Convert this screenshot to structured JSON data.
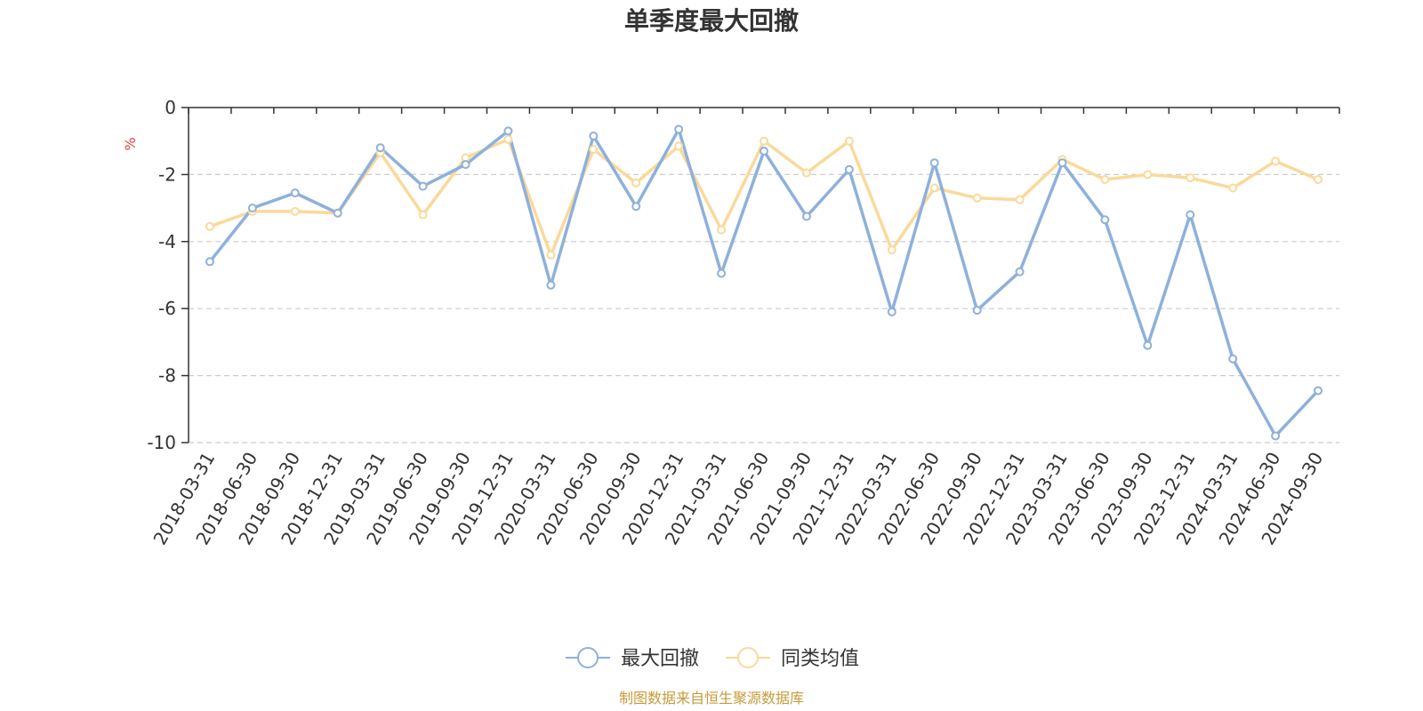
{
  "chart_data": {
    "type": "line",
    "title": "单季度最大回撤",
    "ylabel": "%",
    "xlabel": "",
    "ylim": [
      -10,
      0
    ],
    "yticks": [
      0,
      -2,
      -4,
      -6,
      -8,
      -10
    ],
    "categories": [
      "2018-03-31",
      "2018-06-30",
      "2018-09-30",
      "2018-12-31",
      "2019-03-31",
      "2019-06-30",
      "2019-09-30",
      "2019-12-31",
      "2020-03-31",
      "2020-06-30",
      "2020-09-30",
      "2020-12-31",
      "2021-03-31",
      "2021-06-30",
      "2021-09-30",
      "2021-12-31",
      "2022-03-31",
      "2022-06-30",
      "2022-09-30",
      "2022-12-31",
      "2023-03-31",
      "2023-06-30",
      "2023-09-30",
      "2023-12-31",
      "2024-03-31",
      "2024-06-30",
      "2024-09-30"
    ],
    "series": [
      {
        "name": "最大回撤",
        "color": "#8eb0dc",
        "values": [
          -4.6,
          -3.0,
          -2.55,
          -3.15,
          -1.2,
          -2.35,
          -1.7,
          -0.7,
          -5.3,
          -0.85,
          -2.95,
          -0.65,
          -4.95,
          -1.3,
          -3.25,
          -1.85,
          -6.1,
          -1.65,
          -6.05,
          -4.9,
          -1.65,
          -3.35,
          -7.1,
          -3.2,
          -7.5,
          -9.8,
          -8.45
        ]
      },
      {
        "name": "同类均值",
        "color": "#fbd99a",
        "values": [
          -3.55,
          -3.1,
          -3.1,
          -3.15,
          -1.35,
          -3.2,
          -1.5,
          -0.95,
          -4.4,
          -1.25,
          -2.25,
          -1.15,
          -3.65,
          -1.0,
          -1.95,
          -1.0,
          -4.25,
          -2.4,
          -2.7,
          -2.75,
          -1.55,
          -2.15,
          -2.0,
          -2.1,
          -2.4,
          -1.6,
          -2.15
        ]
      }
    ],
    "grid": true,
    "legend_position": "bottom-center"
  },
  "source_note": "制图数据来自恒生聚源数据库",
  "colors": {
    "axis": "#333333",
    "grid": "#cccccc",
    "unit": "#e8413a",
    "source": "#c89a3a"
  }
}
